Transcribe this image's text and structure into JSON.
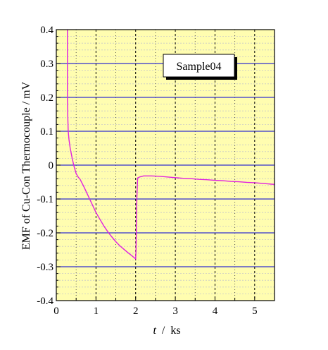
{
  "chart_data": {
    "type": "line",
    "xlabel_italic": "t",
    "xlabel_rest": "  /  ks",
    "ylabel": "EMF of Cu-Con Thermocouple / mV",
    "xlim": [
      0,
      5.5
    ],
    "ylim": [
      -0.4,
      0.4
    ],
    "x_ticks": [
      0,
      1,
      2,
      3,
      4,
      5
    ],
    "y_ticks": [
      -0.4,
      -0.3,
      -0.2,
      -0.1,
      0,
      0.1,
      0.2,
      0.3,
      0.4
    ],
    "x_tick_labels": [
      "0",
      "1",
      "2",
      "3",
      "4",
      "5"
    ],
    "y_tick_labels": [
      "-0.4",
      "-0.3",
      "-0.2",
      "-0.1",
      "0",
      "0.1",
      "0.2",
      "0.3",
      "0.4"
    ],
    "legend_text": "Sample04",
    "legend_position": "top-right",
    "grid": true,
    "colors": {
      "background": "#fffdb0",
      "minor_grid": "#c8c8c8",
      "major_h_grid": "#3030d0",
      "major_v_grid": "#000000",
      "line": "#e020e0"
    },
    "series": [
      {
        "x": [
          0.28,
          0.28,
          0.29,
          0.3,
          0.32,
          0.35,
          0.4,
          0.45,
          0.5,
          0.55,
          0.6,
          0.7,
          0.8,
          0.9,
          1.0,
          1.1,
          1.2,
          1.3,
          1.4,
          1.5,
          1.6,
          1.7,
          1.8,
          1.9,
          2.0,
          2.01,
          2.03,
          2.05,
          2.1,
          2.2,
          2.4,
          2.6,
          2.8,
          3.0,
          3.2,
          3.4,
          3.6,
          3.8,
          4.0,
          4.2,
          4.4,
          4.6,
          4.8,
          5.0,
          5.2,
          5.4,
          5.5
        ],
        "y": [
          0.4,
          0.2,
          0.14,
          0.1,
          0.075,
          0.05,
          0.02,
          -0.005,
          -0.025,
          -0.035,
          -0.042,
          -0.065,
          -0.09,
          -0.115,
          -0.14,
          -0.16,
          -0.18,
          -0.197,
          -0.212,
          -0.226,
          -0.238,
          -0.248,
          -0.258,
          -0.267,
          -0.277,
          -0.25,
          -0.1,
          -0.038,
          -0.035,
          -0.032,
          -0.032,
          -0.033,
          -0.035,
          -0.037,
          -0.039,
          -0.04,
          -0.042,
          -0.043,
          -0.045,
          -0.046,
          -0.048,
          -0.049,
          -0.051,
          -0.052,
          -0.054,
          -0.056,
          -0.057
        ]
      }
    ]
  }
}
